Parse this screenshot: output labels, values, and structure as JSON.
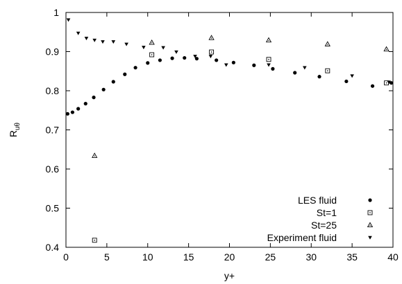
{
  "chart_data": {
    "type": "scatter",
    "xlabel": "y+",
    "ylabel_main": "R",
    "ylabel_sub": "uθ",
    "xlim": [
      0,
      40
    ],
    "ylim": [
      0.4,
      1.0
    ],
    "xticks": [
      "0",
      "5",
      "10",
      "15",
      "20",
      "25",
      "30",
      "35",
      "40"
    ],
    "yticks": [
      "0.4",
      "0.5",
      "0.6",
      "0.7",
      "0.8",
      "0.9",
      "1"
    ],
    "grid": false,
    "legend_position": "bottom-right",
    "series": [
      {
        "name": "LES fluid",
        "marker": "filled-circle",
        "x": [
          0.2,
          0.8,
          1.5,
          2.4,
          3.4,
          4.6,
          5.8,
          7.2,
          8.5,
          10.0,
          11.5,
          13.0,
          14.5,
          16.0,
          18.4,
          20.5,
          23.0,
          25.3,
          28.0,
          31.0,
          34.3,
          37.5,
          39.8
        ],
        "y": [
          0.741,
          0.745,
          0.754,
          0.767,
          0.783,
          0.803,
          0.823,
          0.842,
          0.859,
          0.871,
          0.878,
          0.883,
          0.884,
          0.882,
          0.878,
          0.872,
          0.865,
          0.856,
          0.846,
          0.836,
          0.824,
          0.812,
          0.82
        ]
      },
      {
        "name": "St=1",
        "marker": "open-square-dot",
        "x": [
          3.5,
          10.5,
          17.8,
          24.8,
          32.0,
          39.2
        ],
        "y": [
          0.418,
          0.892,
          0.899,
          0.88,
          0.851,
          0.82
        ]
      },
      {
        "name": "St=25",
        "marker": "open-triangle-dot",
        "x": [
          3.5,
          10.5,
          17.8,
          24.8,
          32.0,
          39.2
        ],
        "y": [
          0.634,
          0.923,
          0.935,
          0.929,
          0.919,
          0.906
        ]
      },
      {
        "name": "Experiment fluid",
        "marker": "filled-down-triangle",
        "x": [
          0.3,
          1.5,
          2.5,
          3.5,
          4.5,
          5.8,
          7.4,
          9.5,
          11.9,
          13.5,
          15.8,
          17.7,
          19.6,
          24.8,
          29.2,
          35.0,
          39.5
        ],
        "y": [
          0.981,
          0.947,
          0.934,
          0.929,
          0.925,
          0.925,
          0.919,
          0.911,
          0.91,
          0.899,
          0.888,
          0.888,
          0.866,
          0.866,
          0.859,
          0.838,
          0.822
        ]
      }
    ]
  }
}
